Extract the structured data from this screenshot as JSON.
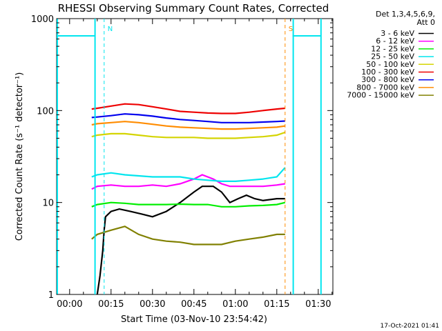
{
  "chart_data": {
    "type": "line",
    "title": "RHESSI Observing Summary Count Rates, Corrected",
    "xlabel": "Start Time (03-Nov-10 23:54:42)",
    "ylabel": "Corrected Count Rate (s⁻¹ detector⁻¹)",
    "yscale": "log",
    "ylim": [
      1,
      1000
    ],
    "xlim_minutes_after_start": [
      -4.7,
      95.3
    ],
    "x_tick_labels": [
      "00:00",
      "00:15",
      "00:30",
      "00:45",
      "01:00",
      "01:15",
      "01:30"
    ],
    "y_tick_labels": [
      "1",
      "10",
      "100",
      "1000"
    ],
    "legend_header": [
      "Det 1,3,4,5,6,9,",
      "Att 0"
    ],
    "timestamp": "17-Oct-2021 01:41",
    "markers": [
      {
        "label": "N",
        "minute": 12.5,
        "color": "#00e5ee"
      },
      {
        "label": "S",
        "minute": 78,
        "color": "#ff8c00"
      }
    ],
    "series": [
      {
        "name": "3 - 6 keV",
        "color": "#000000",
        "points": [
          [
            10,
            1
          ],
          [
            11,
            1.6
          ],
          [
            12,
            3
          ],
          [
            12.5,
            5
          ],
          [
            13,
            7
          ],
          [
            15,
            8
          ],
          [
            18,
            8.5
          ],
          [
            22,
            8
          ],
          [
            26,
            7.5
          ],
          [
            30,
            7
          ],
          [
            35,
            8
          ],
          [
            40,
            10
          ],
          [
            45,
            13
          ],
          [
            48,
            15
          ],
          [
            52,
            15
          ],
          [
            55,
            13
          ],
          [
            58,
            10
          ],
          [
            61,
            11
          ],
          [
            64,
            12
          ],
          [
            67,
            11
          ],
          [
            70,
            10.5
          ],
          [
            75,
            11
          ],
          [
            78,
            11
          ]
        ]
      },
      {
        "name": "6 - 12 keV",
        "color": "#ff00ff",
        "points": [
          [
            8,
            14
          ],
          [
            10,
            15
          ],
          [
            15,
            15.5
          ],
          [
            20,
            15
          ],
          [
            25,
            15
          ],
          [
            30,
            15.5
          ],
          [
            35,
            15
          ],
          [
            40,
            16
          ],
          [
            45,
            18
          ],
          [
            48,
            20
          ],
          [
            52,
            18
          ],
          [
            55,
            16
          ],
          [
            58,
            15
          ],
          [
            62,
            15
          ],
          [
            66,
            15
          ],
          [
            70,
            15
          ],
          [
            75,
            15.5
          ],
          [
            78,
            16
          ]
        ]
      },
      {
        "name": "12 - 25 keV",
        "color": "#00ee00",
        "points": [
          [
            8,
            9
          ],
          [
            10,
            9.5
          ],
          [
            15,
            10
          ],
          [
            20,
            9.8
          ],
          [
            25,
            9.5
          ],
          [
            30,
            9.5
          ],
          [
            35,
            9.5
          ],
          [
            40,
            9.6
          ],
          [
            45,
            9.5
          ],
          [
            50,
            9.5
          ],
          [
            55,
            9
          ],
          [
            60,
            9
          ],
          [
            65,
            9.2
          ],
          [
            70,
            9.3
          ],
          [
            75,
            9.5
          ],
          [
            78,
            10
          ]
        ]
      },
      {
        "name": "25 - 50 keV",
        "color": "#00e5ee",
        "points": [
          [
            8,
            19
          ],
          [
            10,
            20
          ],
          [
            15,
            21
          ],
          [
            20,
            20
          ],
          [
            25,
            19.5
          ],
          [
            30,
            19
          ],
          [
            35,
            19
          ],
          [
            40,
            19
          ],
          [
            45,
            18
          ],
          [
            50,
            17.5
          ],
          [
            55,
            17
          ],
          [
            60,
            17
          ],
          [
            65,
            17.5
          ],
          [
            70,
            18
          ],
          [
            75,
            19
          ],
          [
            78,
            24
          ]
        ]
      },
      {
        "name": "50 - 100 keV",
        "color": "#d4d400",
        "points": [
          [
            8,
            52
          ],
          [
            10,
            54
          ],
          [
            15,
            56
          ],
          [
            20,
            56
          ],
          [
            25,
            54
          ],
          [
            30,
            52
          ],
          [
            35,
            51
          ],
          [
            40,
            51
          ],
          [
            45,
            51
          ],
          [
            50,
            50
          ],
          [
            55,
            50
          ],
          [
            60,
            50
          ],
          [
            65,
            51
          ],
          [
            70,
            52
          ],
          [
            75,
            54
          ],
          [
            78,
            58
          ]
        ]
      },
      {
        "name": "100 - 300 keV",
        "color": "#ee0000",
        "points": [
          [
            8,
            104
          ],
          [
            10,
            106
          ],
          [
            15,
            112
          ],
          [
            20,
            118
          ],
          [
            25,
            116
          ],
          [
            30,
            110
          ],
          [
            35,
            104
          ],
          [
            40,
            98
          ],
          [
            45,
            96
          ],
          [
            50,
            94
          ],
          [
            55,
            93
          ],
          [
            60,
            93
          ],
          [
            65,
            96
          ],
          [
            70,
            100
          ],
          [
            75,
            104
          ],
          [
            78,
            106
          ]
        ]
      },
      {
        "name": "300 - 800 keV",
        "color": "#0000ee",
        "points": [
          [
            8,
            84
          ],
          [
            10,
            85
          ],
          [
            15,
            88
          ],
          [
            20,
            92
          ],
          [
            25,
            90
          ],
          [
            30,
            87
          ],
          [
            35,
            83
          ],
          [
            40,
            80
          ],
          [
            45,
            78
          ],
          [
            50,
            76
          ],
          [
            55,
            74
          ],
          [
            60,
            74
          ],
          [
            65,
            74
          ],
          [
            70,
            75
          ],
          [
            75,
            76
          ],
          [
            78,
            77
          ]
        ]
      },
      {
        "name": "800 - 7000 keV",
        "color": "#ff8c00",
        "points": [
          [
            8,
            70
          ],
          [
            10,
            72
          ],
          [
            15,
            74
          ],
          [
            20,
            76
          ],
          [
            25,
            74
          ],
          [
            30,
            71
          ],
          [
            35,
            68
          ],
          [
            40,
            66
          ],
          [
            45,
            65
          ],
          [
            50,
            64
          ],
          [
            55,
            63
          ],
          [
            60,
            63
          ],
          [
            65,
            64
          ],
          [
            70,
            65
          ],
          [
            75,
            66
          ],
          [
            78,
            68
          ]
        ]
      },
      {
        "name": "7000 - 15000 keV",
        "color": "#808000",
        "points": [
          [
            8,
            4
          ],
          [
            10,
            4.5
          ],
          [
            15,
            5
          ],
          [
            20,
            5.5
          ],
          [
            25,
            4.5
          ],
          [
            30,
            4
          ],
          [
            35,
            3.8
          ],
          [
            40,
            3.7
          ],
          [
            45,
            3.5
          ],
          [
            50,
            3.5
          ],
          [
            55,
            3.5
          ],
          [
            60,
            3.8
          ],
          [
            65,
            4
          ],
          [
            70,
            4.2
          ],
          [
            75,
            4.5
          ],
          [
            78,
            4.5
          ]
        ]
      }
    ],
    "saa_or_offpointing_level": 650,
    "saa_intervals_minutes": [
      [
        -4.7,
        9.2
      ],
      [
        80.7,
        91
      ]
    ]
  }
}
